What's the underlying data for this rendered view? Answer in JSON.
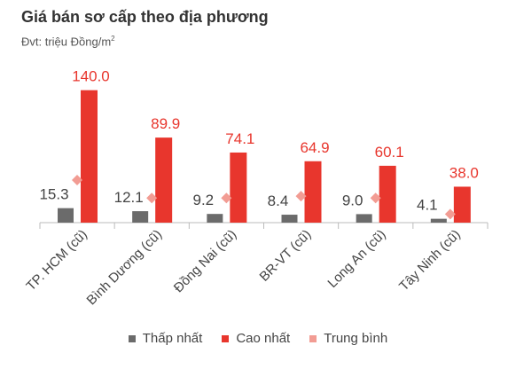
{
  "chart_data": {
    "type": "bar",
    "title": "Giá bán sơ cấp theo địa phương",
    "subtitle_prefix": "Đvt: triệu Đồng/m",
    "subtitle_sup": "2",
    "categories": [
      "TP. HCM (cũ)",
      "Bình Dương (cũ)",
      "Đồng Nai (cũ)",
      "BR-VT (cũ)",
      "Long An (cũ)",
      "Tây Ninh (cũ)"
    ],
    "series": [
      {
        "name": "Thấp nhất",
        "values": [
          15.3,
          12.1,
          9.2,
          8.4,
          9.0,
          4.1
        ],
        "labels": [
          "15.3",
          "12.1",
          "9.2",
          "8.4",
          "9.0",
          "4.1"
        ],
        "color": "#6b6b6b"
      },
      {
        "name": "Cao nhất",
        "values": [
          140.0,
          89.9,
          74.1,
          64.9,
          60.1,
          38.0
        ],
        "labels": [
          "140.0",
          "89.9",
          "74.1",
          "64.9",
          "60.1",
          "38.0"
        ],
        "color": "#e8362d"
      },
      {
        "name": "Trung bình",
        "values": [
          45,
          26,
          26,
          28,
          26,
          9
        ],
        "color": "#f29c93"
      }
    ],
    "ylim": [
      0,
      150
    ],
    "grid": false,
    "legend_position": "bottom"
  }
}
